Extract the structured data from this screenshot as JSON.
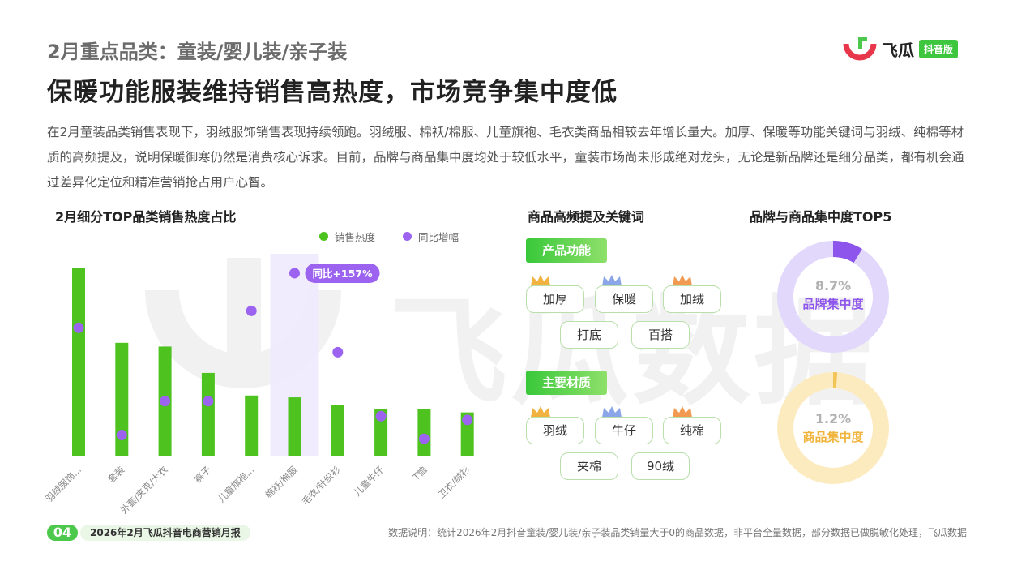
{
  "header": {
    "subtitle": "2月重点品类：童装/婴儿装/亲子装",
    "title": "保暖功能服装维持销售高热度，市场竞争集中度低",
    "brand_name": "飞瓜",
    "brand_tag": "抖音版"
  },
  "description": "在2月童装品类销售表现下，羽绒服饰销售表现持续领跑。羽绒服、棉袄/棉服、儿童旗袍、毛衣类商品相较去年增长量大。加厚、保暖等功能关键词与羽绒、纯棉等材质的高频提及，说明保暖御寒仍然是消费核心诉求。目前，品牌与商品集中度均处于较低水平，童装市场尚未形成绝对龙头，无论是新品牌还是细分品类，都有机会通过差异化定位和精准营销抢占用户心智。",
  "watermark": "飞瓜数据",
  "left_section": {
    "title": "2月细分TOP品类销售热度占比",
    "legend": [
      {
        "label": "销售热度",
        "color": "#4ec21f"
      },
      {
        "label": "同比增幅",
        "color": "#9b63f0"
      }
    ],
    "callout": "同比+157%"
  },
  "chart_data": {
    "type": "bar",
    "categories": [
      "羽绒服饰...",
      "套装",
      "外套/夹克/大衣",
      "裤子",
      "儿童旗袍...",
      "棉袄/棉服",
      "毛衣/针织衫",
      "儿童牛仔",
      "T恤",
      "卫衣/绒衫"
    ],
    "series": [
      {
        "name": "销售热度",
        "type": "bar",
        "color": "#4ec21f",
        "values": [
          100,
          60,
          58,
          44,
          32,
          31,
          27,
          25,
          25,
          23
        ]
      },
      {
        "name": "同比增幅",
        "type": "scatter",
        "color": "#9b63f0",
        "values": [
          68,
          11,
          29,
          29,
          77,
          97,
          55,
          21,
          9,
          19
        ]
      }
    ],
    "highlight_index": 5,
    "ylim": [
      0,
      100
    ],
    "grid": false
  },
  "keywords_section": {
    "title": "商品高频提及关键词",
    "groups": [
      {
        "label": "产品功能",
        "row1": [
          "加厚",
          "保暖",
          "加绒"
        ],
        "row2": [
          "打底",
          "百搭"
        ]
      },
      {
        "label": "主要材质",
        "row1": [
          "羽绒",
          "牛仔",
          "纯棉"
        ],
        "row2": [
          "夹棉",
          "90绒"
        ]
      }
    ],
    "crown_colors": [
      "#f2b240",
      "#8aa6e8",
      "#f29a52"
    ]
  },
  "concentration": {
    "title": "品牌与商品集中度TOP5",
    "items": [
      {
        "pct": "8.7%",
        "value": 8.7,
        "label": "品牌集中度",
        "color": "#8e55ec",
        "track": "#e2d8fb"
      },
      {
        "pct": "1.2%",
        "value": 1.2,
        "label": "商品集中度",
        "color": "#f3c458",
        "track": "#fdebc0"
      }
    ]
  },
  "footer": {
    "page_num": "04",
    "report": "2026年2月飞瓜抖音电商营销月报",
    "note": "数据说明：统计2026年2月抖音童装/婴儿装/亲子装品类销量大于0的商品数据，非平台全量数据，部分数据已做脱敏化处理，飞瓜数据"
  }
}
